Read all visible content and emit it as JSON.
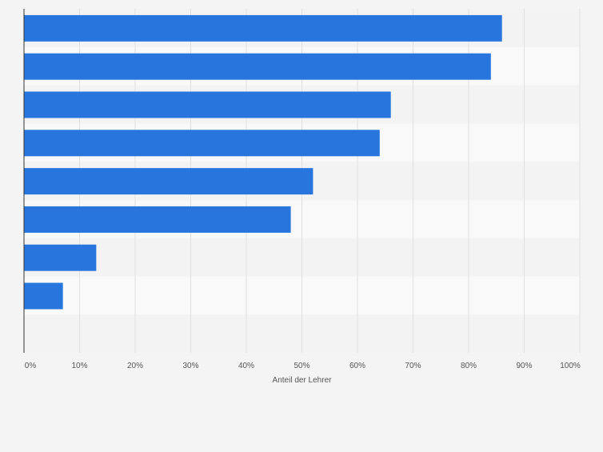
{
  "colors": {
    "background": "#f4f4f4",
    "plot_band_light": "#f9f9f9",
    "plot_band_dark": "#f3f3f3",
    "bar": "#2876dd",
    "gridline": "#e0e0e0",
    "axis": "#333333"
  },
  "chart_data": {
    "type": "bar",
    "orientation": "horizontal",
    "categories": [
      "",
      "",
      "",
      "",
      "",
      "",
      "",
      ""
    ],
    "values": [
      86,
      84,
      66,
      64,
      52,
      48,
      13,
      7
    ],
    "unit": "%",
    "xlabel": "Anteil der Lehrer",
    "ylabel": "",
    "xlim": [
      0,
      100
    ],
    "x_ticks": [
      "0%",
      "10%",
      "20%",
      "30%",
      "40%",
      "50%",
      "60%",
      "70%",
      "80%",
      "90%",
      "100%"
    ],
    "grid": true,
    "legend": "none"
  }
}
